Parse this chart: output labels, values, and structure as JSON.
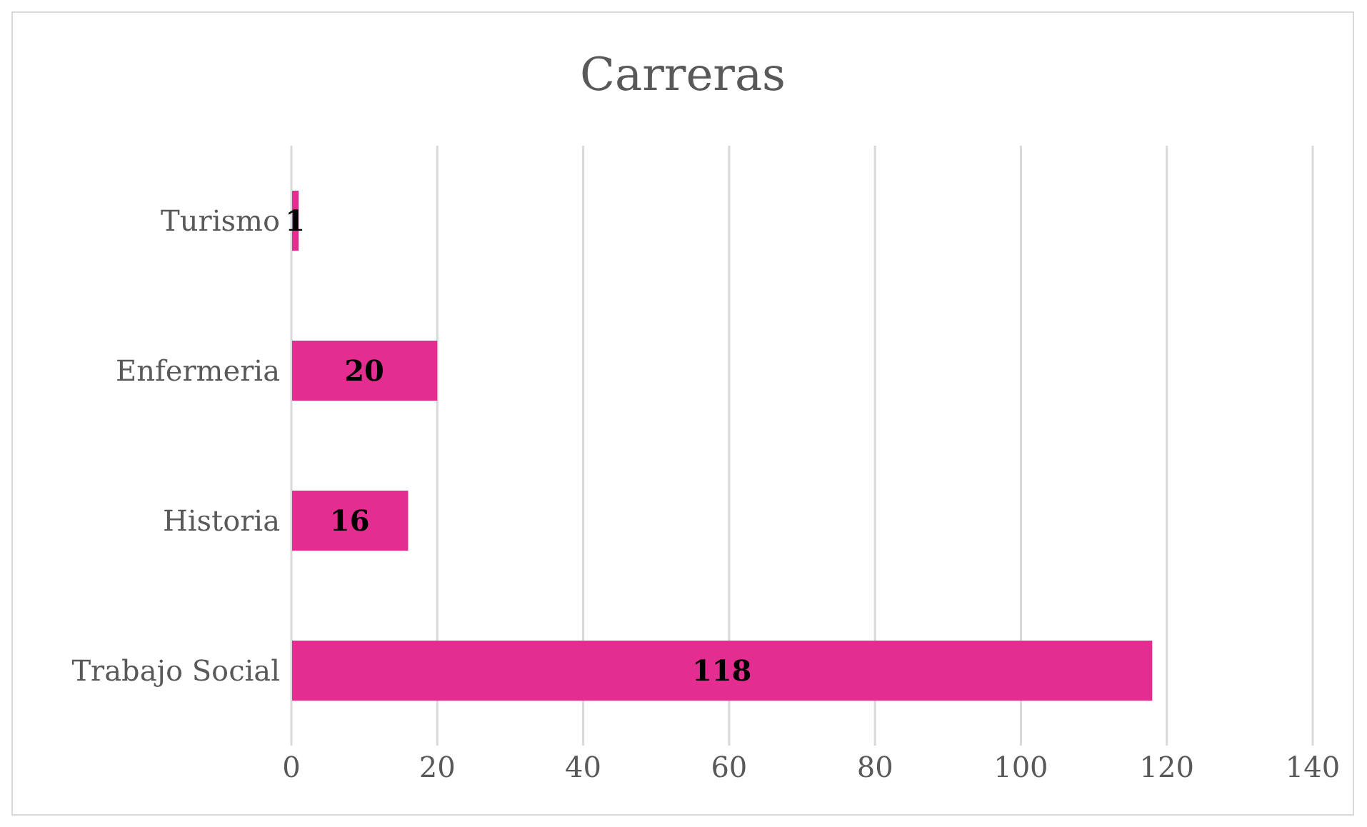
{
  "chart_data": {
    "type": "bar",
    "orientation": "horizontal",
    "title": "Carreras",
    "categories": [
      "Turismo",
      "Enfermeria",
      "Historia",
      "Trabajo Social"
    ],
    "values": [
      1,
      20,
      16,
      118
    ],
    "color": "#e32d91",
    "xlim": [
      0,
      140
    ],
    "xticks": [
      0,
      20,
      40,
      60,
      80,
      100,
      120,
      140
    ],
    "grid": "x",
    "data_labels": true
  }
}
